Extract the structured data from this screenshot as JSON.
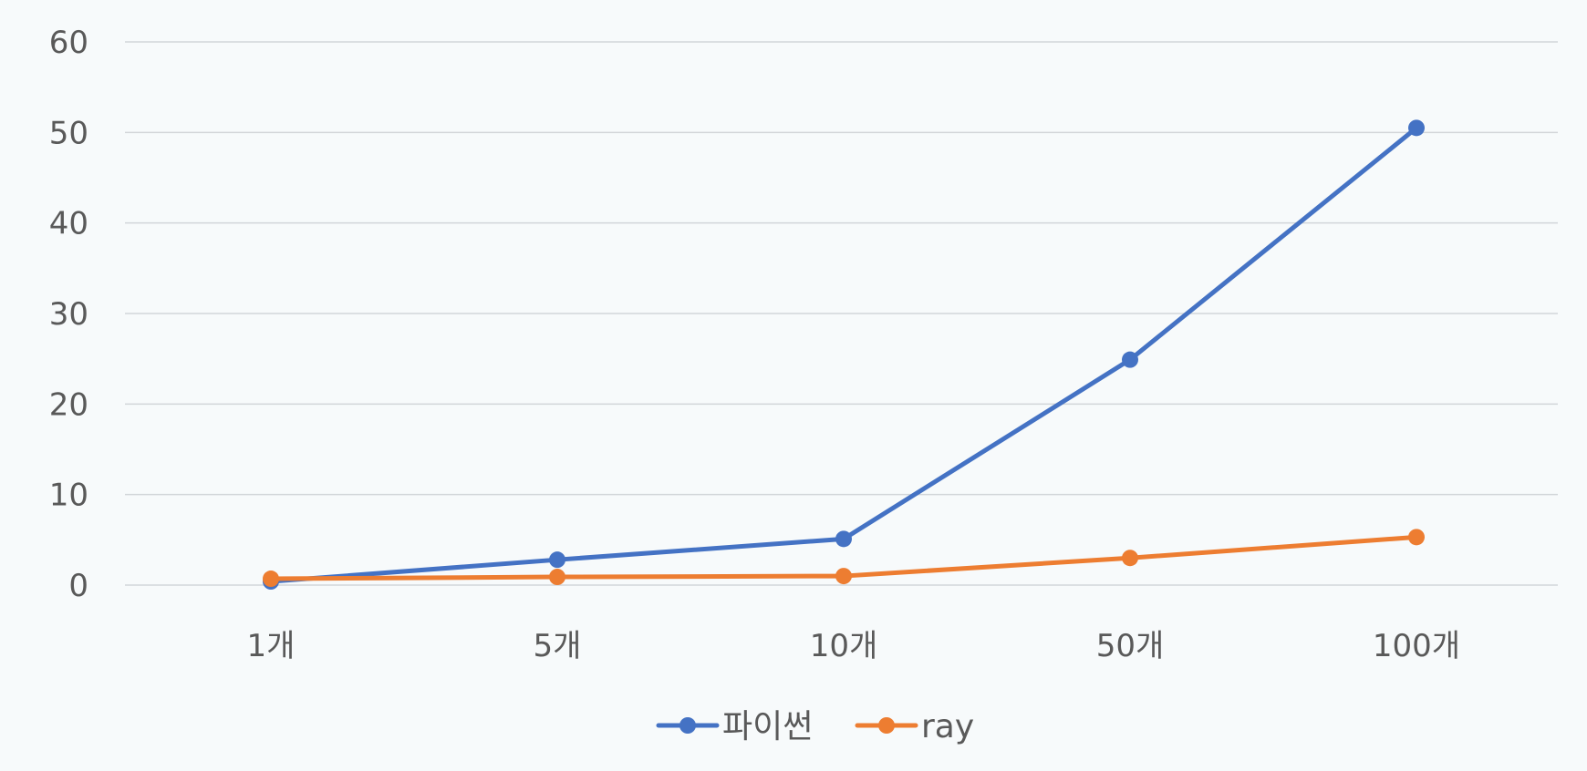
{
  "chart_data": {
    "type": "line",
    "title": "",
    "xlabel": "",
    "ylabel": "",
    "categories": [
      "1개",
      "5개",
      "10개",
      "50개",
      "100개"
    ],
    "y_ticks": [
      "0",
      "10",
      "20",
      "30",
      "40",
      "50",
      "60"
    ],
    "ylim": [
      0,
      60
    ],
    "grid": true,
    "legend_position": "bottom",
    "series": [
      {
        "name": "파이썬",
        "color": "#4472c4",
        "values": [
          0.4,
          2.8,
          5.1,
          24.9,
          50.5
        ]
      },
      {
        "name": "ray",
        "color": "#ed7d31",
        "values": [
          0.7,
          0.9,
          1.0,
          3.0,
          5.3
        ]
      }
    ]
  }
}
